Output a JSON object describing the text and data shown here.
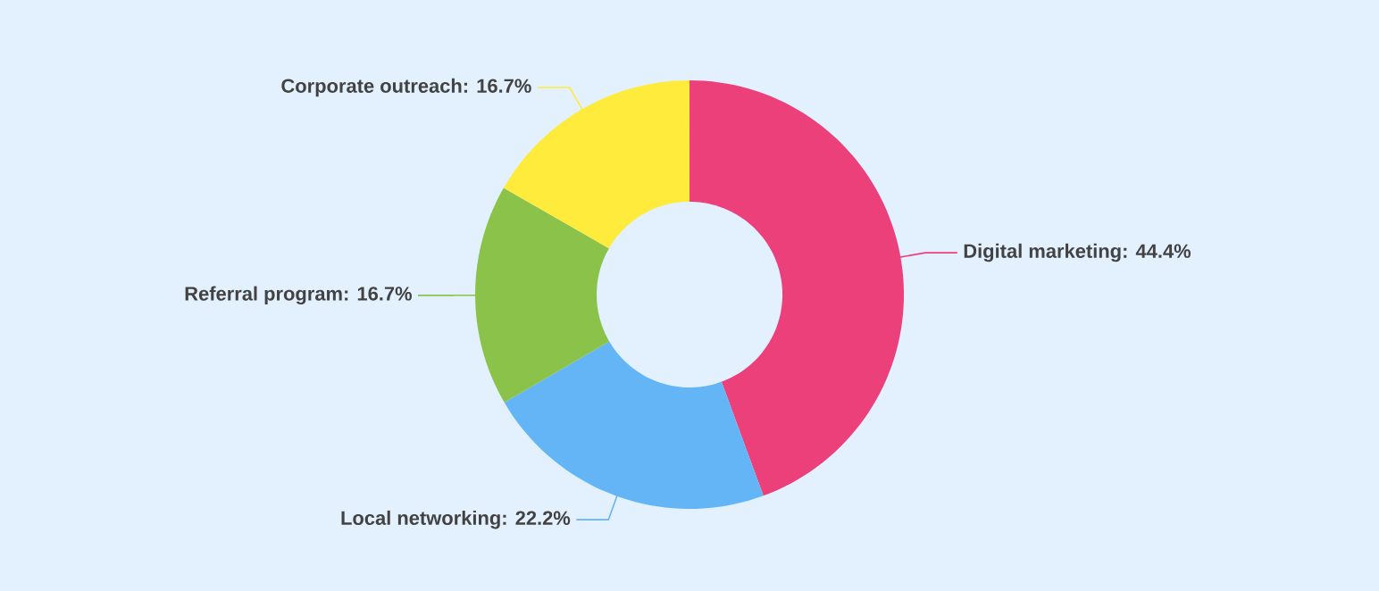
{
  "chart_data": {
    "type": "donut",
    "categories": [
      "Digital marketing",
      "Local networking",
      "Referral program",
      "Corporate outreach"
    ],
    "values": [
      44.4,
      22.2,
      16.7,
      16.7
    ],
    "value_labels": [
      ": 44.4%",
      ": 22.2%",
      ": 16.7%",
      ": 16.7%"
    ],
    "colors": [
      "#ec407a",
      "#64b5f6",
      "#8bc34a",
      "#ffeb3b"
    ]
  }
}
